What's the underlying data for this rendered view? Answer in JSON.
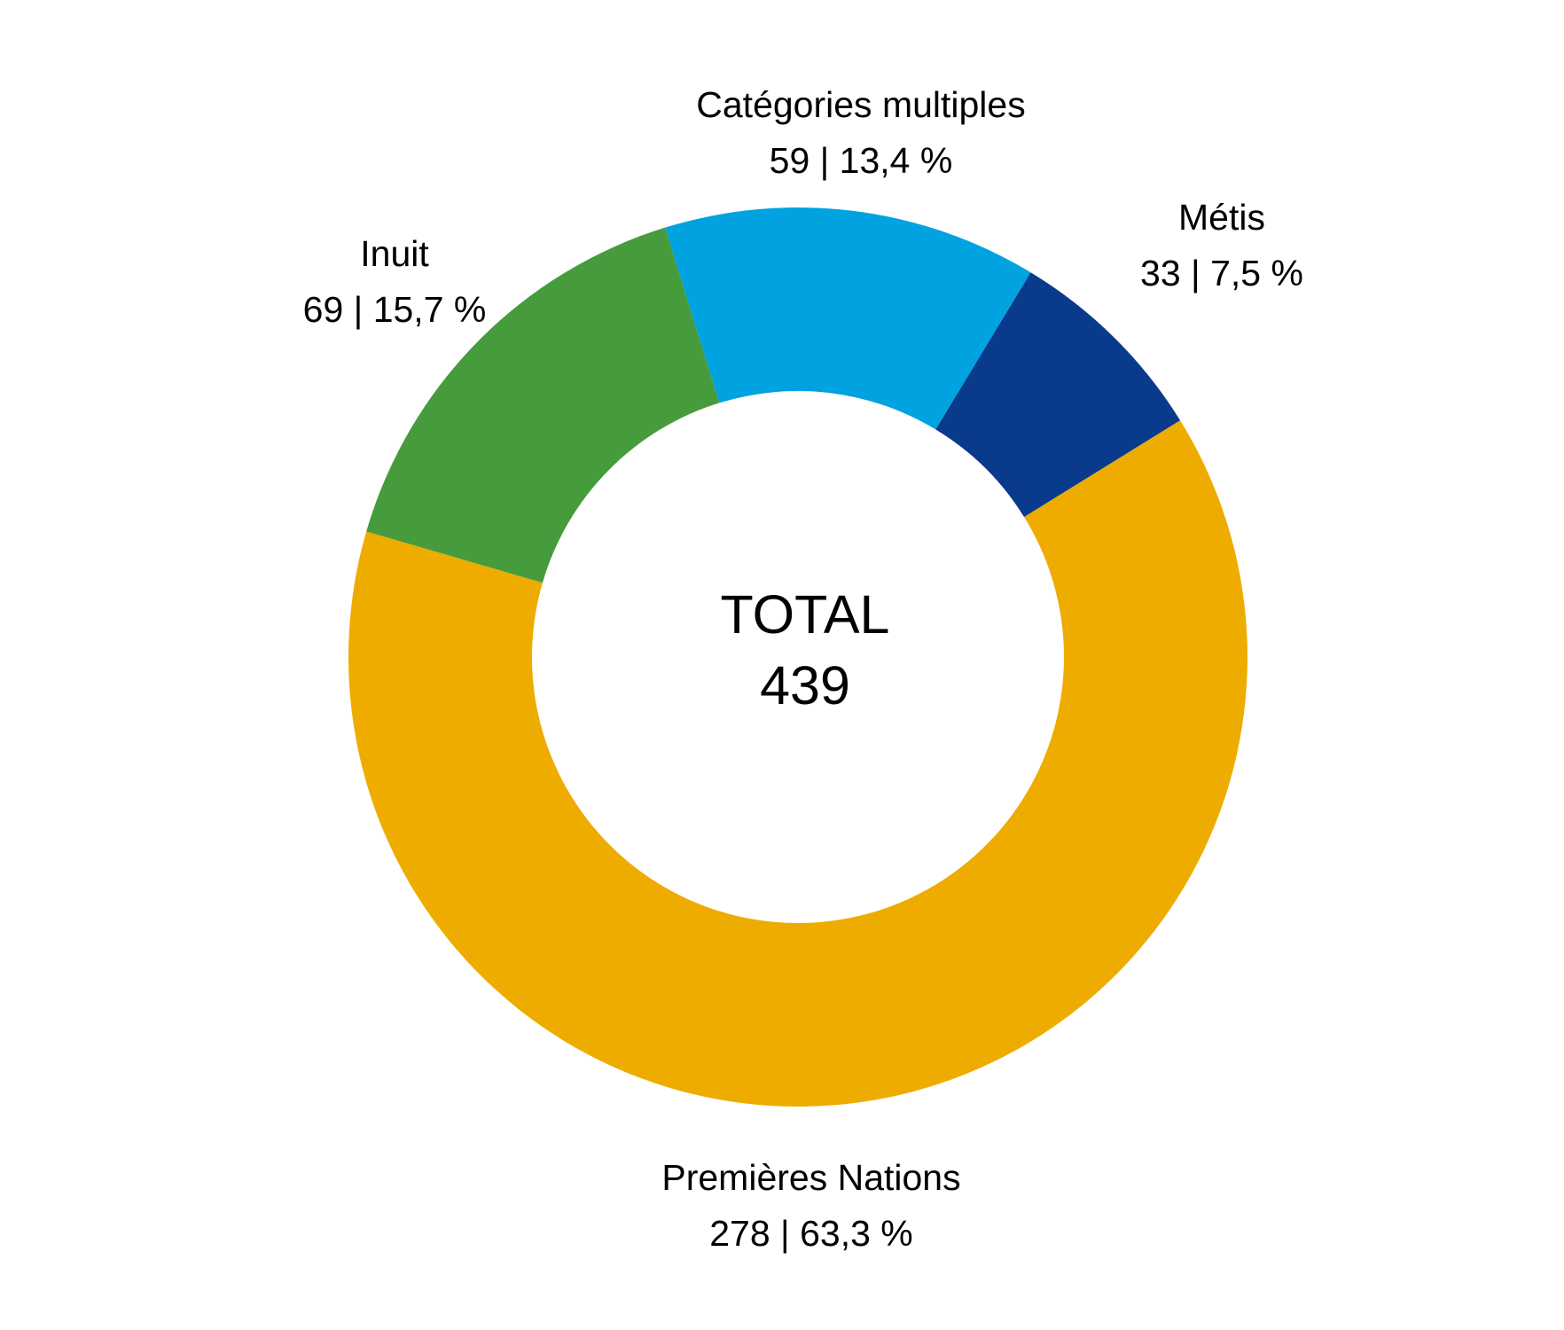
{
  "chart_data": {
    "type": "pie",
    "donut": true,
    "title": "",
    "center_label": "TOTAL",
    "center_value": "439",
    "total": 439,
    "direction": "clockwise",
    "start_angle_deg": -17.2,
    "legend_position": "outside-labels",
    "background_color": "#FFFFFF",
    "segments": [
      {
        "name": "Catégories multiples",
        "count": 59,
        "percent": 13.4,
        "value_label": "59 | 13,4 %",
        "color": "#00A2E0"
      },
      {
        "name": "Métis",
        "count": 33,
        "percent": 7.5,
        "value_label": "33 | 7,5 %",
        "color": "#0A3A8C"
      },
      {
        "name": "Premières Nations",
        "count": 278,
        "percent": 63.3,
        "value_label": "278 | 63,3 %",
        "color": "#EEAC00"
      },
      {
        "name": "Inuit",
        "count": 69,
        "percent": 15.7,
        "value_label": "69 | 15,7 %",
        "color": "#469B3C"
      }
    ]
  }
}
